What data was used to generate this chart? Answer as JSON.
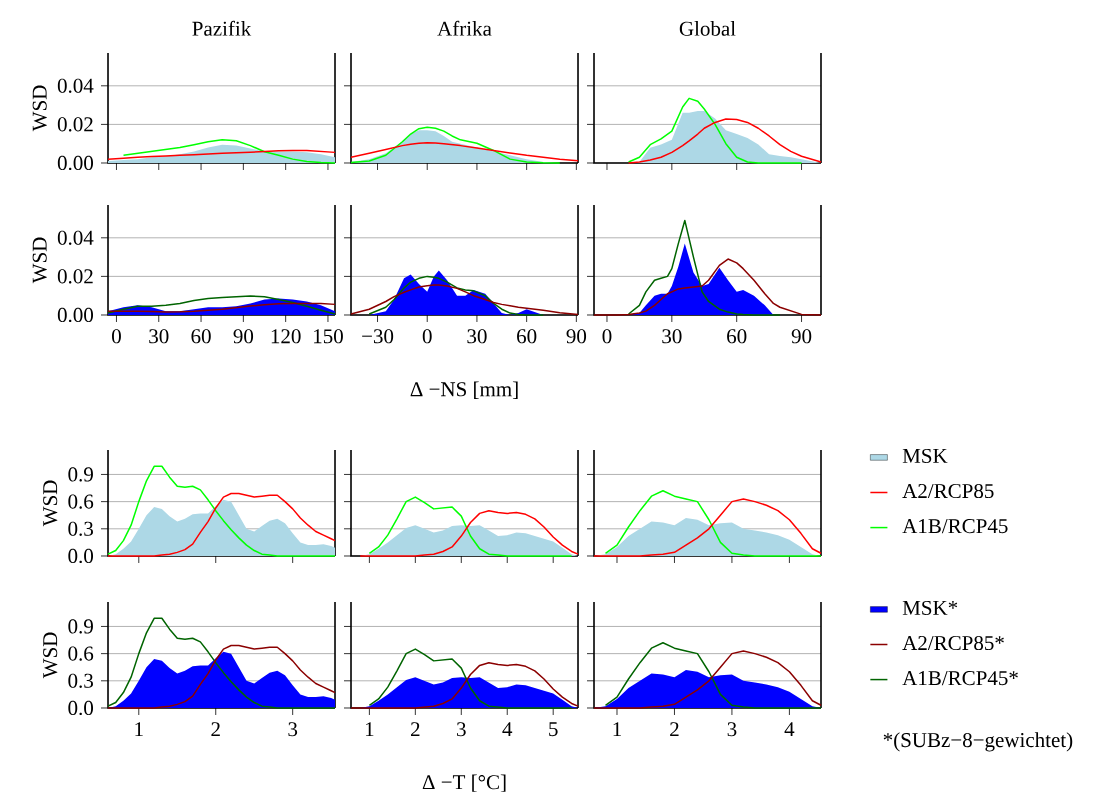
{
  "chart_data": [
    {
      "type": "line",
      "title": "Pazifik",
      "ylabel": "WSD",
      "x": [
        -6,
        5,
        15,
        25,
        35,
        45,
        55,
        65,
        75,
        85,
        95,
        105,
        115,
        125,
        135,
        145,
        155
      ],
      "xlim": [
        -6,
        155
      ],
      "ylim": [
        0,
        0.057
      ],
      "xticks": [
        0,
        30,
        60,
        90,
        120,
        150
      ],
      "yticks": [
        {
          "value": 0,
          "label": "0.00"
        },
        {
          "value": 0.02,
          "label": "0.02"
        },
        {
          "value": 0.04,
          "label": "0.04"
        }
      ],
      "grid": "y",
      "tick_labels": "y",
      "series": [
        {
          "type": "area",
          "color": "#add8e6",
          "values": [
            0.001,
            0.0015,
            0.002,
            0.003,
            0.0035,
            0.0045,
            0.006,
            0.008,
            0.0095,
            0.009,
            0.0075,
            0.006,
            0.006,
            0.006,
            0.0055,
            0.0045,
            0.003
          ]
        },
        {
          "type": "line",
          "color": "#ff0000",
          "values": [
            0.002,
            0.0025,
            0.003,
            0.0033,
            0.0036,
            0.004,
            0.0043,
            0.0046,
            0.005,
            0.0053,
            0.0056,
            0.006,
            0.0063,
            0.0065,
            0.0065,
            0.006,
            0.0055
          ]
        },
        {
          "type": "line",
          "color": "#00ff00",
          "values": [
            null,
            0.004,
            0.005,
            0.006,
            0.007,
            0.008,
            0.0095,
            0.011,
            0.012,
            0.0115,
            0.009,
            0.0058,
            0.004,
            0.002,
            0.0008,
            0.0002,
            0
          ]
        }
      ]
    },
    {
      "type": "line",
      "title": "Afrika",
      "x": [
        -46,
        -35,
        -25,
        -15,
        -10,
        -5,
        0,
        5,
        10,
        15,
        20,
        30,
        40,
        50,
        60,
        70,
        80,
        91
      ],
      "xlim": [
        -46,
        91
      ],
      "ylim": [
        0,
        0.057
      ],
      "xticks": [
        -30,
        0,
        30,
        60,
        90
      ],
      "yticks": [
        0,
        0.02,
        0.04
      ],
      "grid": "y",
      "tick_labels": false,
      "series": [
        {
          "type": "area",
          "color": "#add8e6",
          "values": [
            0.0005,
            0.002,
            0.005,
            0.011,
            0.015,
            0.017,
            0.017,
            0.0165,
            0.014,
            0.011,
            0.01,
            0.008,
            0.006,
            0.004,
            0.002,
            0.0005,
            0,
            0
          ]
        },
        {
          "type": "line",
          "color": "#ff0000",
          "values": [
            0.003,
            0.005,
            0.007,
            0.009,
            0.0097,
            0.0102,
            0.0105,
            0.0103,
            0.01,
            0.0095,
            0.009,
            0.0078,
            0.0065,
            0.0052,
            0.004,
            0.003,
            0.002,
            0.0012
          ]
        },
        {
          "type": "line",
          "color": "#00ff00",
          "values": [
            0.0002,
            0.001,
            0.004,
            0.011,
            0.015,
            0.0178,
            0.0185,
            0.018,
            0.0165,
            0.014,
            0.012,
            0.0102,
            0.0065,
            0.002,
            0.0005,
            0.0001,
            0,
            null
          ]
        }
      ]
    },
    {
      "type": "line",
      "title": "Global",
      "x": [
        -6,
        5,
        10,
        15,
        20,
        25,
        30,
        35,
        38,
        42,
        45,
        50,
        55,
        60,
        65,
        70,
        75,
        80,
        85,
        90,
        99
      ],
      "xlim": [
        -6,
        99
      ],
      "ylim": [
        0,
        0.057
      ],
      "xticks": [
        0,
        30,
        60,
        90
      ],
      "yticks": [
        0,
        0.02,
        0.04
      ],
      "grid": "y",
      "tick_labels": false,
      "series": [
        {
          "type": "area",
          "color": "#add8e6",
          "values": [
            0,
            0,
            0,
            0.0005,
            0.0079,
            0.0096,
            0.012,
            0.026,
            0.026,
            0.027,
            0.027,
            0.023,
            0.017,
            0.015,
            0.013,
            0.0096,
            0.0045,
            0.0036,
            0.003,
            0.0019,
            0
          ]
        },
        {
          "type": "line",
          "color": "#ff0000",
          "values": [
            null,
            null,
            0,
            0.0005,
            0.0015,
            0.003,
            0.0055,
            0.009,
            0.0115,
            0.015,
            0.018,
            0.021,
            0.0228,
            0.0225,
            0.021,
            0.018,
            0.014,
            0.0095,
            0.006,
            0.0035,
            0.0005
          ]
        },
        {
          "type": "line",
          "color": "#00ff00",
          "values": [
            null,
            null,
            0.0005,
            0.003,
            0.0095,
            0.0125,
            0.0165,
            0.029,
            0.0335,
            0.032,
            0.028,
            0.02,
            0.01,
            0.003,
            0.0005,
            0,
            0,
            0,
            0,
            0,
            null
          ]
        }
      ]
    },
    {
      "type": "line",
      "ylabel": "WSD",
      "x": [
        -6,
        5,
        15,
        25,
        35,
        45,
        55,
        65,
        75,
        85,
        95,
        105,
        115,
        125,
        135,
        145,
        155
      ],
      "xlim": [
        -6,
        155
      ],
      "ylim": [
        0,
        0.057
      ],
      "xticks": [
        0,
        30,
        60,
        90,
        120,
        150
      ],
      "yticks": [
        {
          "value": 0,
          "label": "0.00"
        },
        {
          "value": 0.02,
          "label": "0.02"
        },
        {
          "value": 0.04,
          "label": "0.04"
        }
      ],
      "grid": "y",
      "series": [
        {
          "type": "area",
          "color": "#0000ff",
          "values": [
            0.002,
            0.004,
            0.005,
            0.004,
            0.002,
            0.002,
            0.003,
            0.004,
            0.004,
            0.0045,
            0.006,
            0.008,
            0.0085,
            0.008,
            0.007,
            0.005,
            0.002
          ]
        },
        {
          "type": "line",
          "color": "#8b0000",
          "values": [
            0.002,
            0.002,
            0.002,
            0.0018,
            0.0016,
            0.0017,
            0.002,
            0.0025,
            0.003,
            0.0038,
            0.0046,
            0.0053,
            0.0058,
            0.006,
            0.006,
            0.006,
            0.0055
          ]
        },
        {
          "type": "line",
          "color": "#006400",
          "values": [
            0.001,
            0.003,
            0.0045,
            0.0045,
            0.005,
            0.006,
            0.0075,
            0.0085,
            0.009,
            0.0095,
            0.0098,
            0.0095,
            0.008,
            0.0065,
            0.0045,
            0.0025,
            0.0005
          ]
        }
      ]
    },
    {
      "type": "line",
      "xlabel": "Δ −NS [mm]",
      "x": [
        -46,
        -35,
        -25,
        -20,
        -14,
        -10,
        -5,
        0,
        4,
        7,
        12,
        18,
        23,
        28,
        35,
        40,
        45,
        50,
        55,
        60,
        65,
        70,
        80,
        91
      ],
      "xlim": [
        -46,
        91
      ],
      "ylim": [
        0,
        0.057
      ],
      "xticks": [
        {
          "value": -30,
          "label": "−30"
        },
        0,
        30,
        60,
        90
      ],
      "yticks": [
        0,
        0.02,
        0.04
      ],
      "grid": "y",
      "tick_labels": "x",
      "series": [
        {
          "type": "area",
          "color": "#0000ff",
          "values": [
            0,
            0,
            0.002,
            0.008,
            0.019,
            0.021,
            0.016,
            0.012,
            0.02,
            0.023,
            0.018,
            0.01,
            0.01,
            0.013,
            0.011,
            0.006,
            0.001,
            0,
            0.001,
            0.003,
            0.0015,
            0,
            0,
            0
          ]
        },
        {
          "type": "line",
          "color": "#8b0000",
          "values": [
            0.0005,
            0.003,
            0.007,
            0.0095,
            0.0118,
            0.013,
            0.0145,
            0.0152,
            0.0155,
            0.0155,
            0.015,
            0.0138,
            0.012,
            0.01,
            0.008,
            0.0065,
            0.0055,
            0.0048,
            0.004,
            0.0035,
            0.003,
            0.0025,
            0.0012,
            0.0002
          ]
        },
        {
          "type": "line",
          "color": "#006400",
          "values": [
            null,
            0.0005,
            0.004,
            0.008,
            0.014,
            0.017,
            0.019,
            0.02,
            0.0195,
            0.019,
            0.017,
            0.014,
            0.013,
            0.0125,
            0.01,
            0.006,
            0.003,
            0.001,
            0.0003,
            0,
            0,
            0,
            null,
            null
          ]
        }
      ]
    },
    {
      "type": "line",
      "x": [
        -6,
        5,
        10,
        15,
        18,
        22,
        25,
        28,
        30,
        33,
        36,
        40,
        44,
        47,
        52,
        56,
        60,
        63,
        68,
        73,
        77,
        80,
        90,
        99
      ],
      "xlim": [
        -6,
        99
      ],
      "ylim": [
        0,
        0.057
      ],
      "xticks": [
        0,
        30,
        60,
        90
      ],
      "yticks": [
        0,
        0.02,
        0.04
      ],
      "grid": "y",
      "tick_labels": "x",
      "series": [
        {
          "type": "area",
          "color": "#0000ff",
          "values": [
            0,
            0,
            0,
            0.001,
            0.005,
            0.01,
            0.011,
            0.011,
            0.015,
            0.025,
            0.037,
            0.022,
            0.015,
            0.016,
            0.0245,
            0.018,
            0.012,
            0.013,
            0.01,
            0.005,
            0,
            0,
            0,
            0
          ]
        },
        {
          "type": "line",
          "color": "#8b0000",
          "values": [
            0,
            0,
            0.0003,
            0.001,
            0.002,
            0.005,
            0.008,
            0.011,
            0.012,
            0.0135,
            0.014,
            0.0145,
            0.015,
            0.018,
            0.0257,
            0.029,
            0.027,
            0.024,
            0.018,
            0.011,
            0.006,
            0.004,
            0.0003,
            0
          ]
        },
        {
          "type": "line",
          "color": "#006400",
          "values": [
            null,
            null,
            0.0005,
            0.005,
            0.012,
            0.018,
            0.019,
            0.02,
            0.024,
            0.037,
            0.049,
            0.03,
            0.012,
            0.007,
            0.003,
            0.0015,
            0.0005,
            0.0002,
            0,
            0,
            0,
            0,
            null,
            null
          ]
        }
      ]
    },
    {
      "type": "line",
      "ylabel": "WSD",
      "x": [
        0.6,
        0.7,
        0.8,
        0.9,
        1.0,
        1.1,
        1.2,
        1.3,
        1.4,
        1.5,
        1.6,
        1.7,
        1.8,
        1.9,
        2.0,
        2.1,
        2.2,
        2.3,
        2.4,
        2.5,
        2.6,
        2.7,
        2.8,
        2.9,
        3.0,
        3.1,
        3.2,
        3.3,
        3.4,
        3.5,
        3.55
      ],
      "xlim": [
        0.6,
        3.55
      ],
      "ylim": [
        0,
        1.17
      ],
      "xticks": [
        1,
        2,
        3
      ],
      "yticks": [
        {
          "value": 0,
          "label": "0.0"
        },
        0.3,
        0.6,
        0.9
      ],
      "grid": "y",
      "tick_labels": "y",
      "series": [
        {
          "type": "area",
          "color": "#add8e6",
          "values": [
            0,
            0.02,
            0.08,
            0.16,
            0.3,
            0.45,
            0.54,
            0.52,
            0.44,
            0.38,
            0.41,
            0.46,
            0.47,
            0.47,
            0.55,
            0.62,
            0.6,
            0.45,
            0.3,
            0.27,
            0.33,
            0.39,
            0.41,
            0.36,
            0.25,
            0.15,
            0.12,
            0.12,
            0.13,
            0.11,
            0.09
          ]
        },
        {
          "type": "line",
          "color": "#ff0000",
          "values": [
            0,
            0,
            0,
            0,
            0,
            0,
            0,
            0.01,
            0.02,
            0.04,
            0.07,
            0.13,
            0.26,
            0.38,
            0.53,
            0.65,
            0.69,
            0.69,
            0.67,
            0.65,
            0.66,
            0.67,
            0.67,
            0.6,
            0.52,
            0.42,
            0.34,
            0.27,
            0.23,
            0.19,
            0.17
          ]
        },
        {
          "type": "line",
          "color": "#00ff00",
          "values": [
            0.02,
            0.06,
            0.17,
            0.34,
            0.6,
            0.83,
            0.99,
            0.99,
            0.87,
            0.77,
            0.76,
            0.77,
            0.73,
            0.62,
            0.5,
            0.39,
            0.29,
            0.2,
            0.12,
            0.06,
            0.02,
            0.01,
            0,
            0,
            0,
            0,
            0,
            0,
            0,
            0,
            0
          ]
        }
      ]
    },
    {
      "type": "line",
      "x": [
        0.6,
        0.8,
        1.0,
        1.2,
        1.4,
        1.6,
        1.8,
        2.0,
        2.2,
        2.4,
        2.6,
        2.8,
        3.0,
        3.2,
        3.4,
        3.6,
        3.8,
        4.0,
        4.2,
        4.4,
        4.6,
        4.8,
        5.0,
        5.2,
        5.4,
        5.54
      ],
      "xlim": [
        0.6,
        5.54
      ],
      "ylim": [
        0,
        1.17
      ],
      "xticks": [
        1,
        2,
        3,
        4,
        5
      ],
      "yticks": [
        0,
        0.3,
        0.6,
        0.9
      ],
      "grid": "y",
      "tick_labels": false,
      "series": [
        {
          "type": "area",
          "color": "#add8e6",
          "values": [
            0,
            0,
            0.02,
            0.08,
            0.15,
            0.23,
            0.31,
            0.34,
            0.3,
            0.26,
            0.28,
            0.33,
            0.34,
            0.33,
            0.34,
            0.28,
            0.22,
            0.23,
            0.26,
            0.25,
            0.22,
            0.19,
            0.16,
            0.09,
            0.02,
            0
          ]
        },
        {
          "type": "line",
          "color": "#ff0000",
          "values": [
            null,
            0,
            0,
            0,
            0,
            0,
            0,
            0,
            0.01,
            0.02,
            0.05,
            0.1,
            0.22,
            0.37,
            0.47,
            0.5,
            0.48,
            0.47,
            0.48,
            0.46,
            0.41,
            0.32,
            0.21,
            0.12,
            0.05,
            0.02
          ]
        },
        {
          "type": "line",
          "color": "#00ff00",
          "values": [
            null,
            null,
            0.03,
            0.1,
            0.23,
            0.41,
            0.6,
            0.65,
            0.59,
            0.52,
            0.53,
            0.54,
            0.44,
            0.22,
            0.08,
            0.02,
            0.01,
            0,
            0,
            0,
            0,
            0,
            0,
            0,
            0,
            null
          ]
        }
      ]
    },
    {
      "type": "line",
      "x": [
        0.6,
        0.8,
        1.0,
        1.2,
        1.4,
        1.6,
        1.8,
        2.0,
        2.2,
        2.4,
        2.6,
        2.8,
        3.0,
        3.2,
        3.4,
        3.6,
        3.8,
        4.0,
        4.2,
        4.4,
        4.55
      ],
      "xlim": [
        0.6,
        4.55
      ],
      "ylim": [
        0,
        1.17
      ],
      "xticks": [
        1,
        2,
        3,
        4
      ],
      "yticks": [
        0,
        0.3,
        0.6,
        0.9
      ],
      "grid": "y",
      "tick_labels": false,
      "legend": "right",
      "series": [
        {
          "type": "area",
          "name": "MSK",
          "color": "#add8e6",
          "values": [
            0,
            0.02,
            0.1,
            0.22,
            0.3,
            0.38,
            0.37,
            0.34,
            0.42,
            0.4,
            0.34,
            0.36,
            0.37,
            0.3,
            0.28,
            0.26,
            0.23,
            0.18,
            0.1,
            0.02,
            0
          ]
        },
        {
          "type": "line",
          "name": "A2/RCP85",
          "color": "#ff0000",
          "values": [
            0,
            0,
            0,
            0,
            0,
            0.01,
            0.02,
            0.04,
            0.12,
            0.2,
            0.3,
            0.45,
            0.6,
            0.63,
            0.6,
            0.56,
            0.5,
            0.4,
            0.25,
            0.08,
            0.03
          ]
        },
        {
          "type": "line",
          "name": "A1B/RCP45",
          "color": "#00ff00",
          "values": [
            null,
            0.03,
            0.12,
            0.32,
            0.5,
            0.66,
            0.72,
            0.66,
            0.63,
            0.6,
            0.4,
            0.15,
            0.03,
            0.01,
            0,
            0,
            0,
            0,
            0,
            0,
            0
          ]
        }
      ]
    },
    {
      "type": "line",
      "ylabel": "WSD",
      "x": [
        0.6,
        0.7,
        0.8,
        0.9,
        1.0,
        1.1,
        1.2,
        1.3,
        1.4,
        1.5,
        1.6,
        1.7,
        1.8,
        1.9,
        2.0,
        2.1,
        2.2,
        2.3,
        2.4,
        2.5,
        2.6,
        2.7,
        2.8,
        2.9,
        3.0,
        3.1,
        3.2,
        3.3,
        3.4,
        3.5,
        3.55
      ],
      "xlim": [
        0.6,
        3.55
      ],
      "ylim": [
        0,
        1.17
      ],
      "xticks": [
        1,
        2,
        3
      ],
      "yticks": [
        {
          "value": 0,
          "label": "0.0"
        },
        0.3,
        0.6,
        0.9
      ],
      "grid": "y",
      "series": [
        {
          "type": "area",
          "color": "#0000ff",
          "values": [
            0,
            0.02,
            0.08,
            0.16,
            0.3,
            0.45,
            0.54,
            0.52,
            0.44,
            0.38,
            0.41,
            0.46,
            0.47,
            0.47,
            0.55,
            0.62,
            0.6,
            0.45,
            0.3,
            0.27,
            0.33,
            0.39,
            0.41,
            0.36,
            0.25,
            0.15,
            0.12,
            0.12,
            0.13,
            0.11,
            0.09
          ]
        },
        {
          "type": "line",
          "color": "#8b0000",
          "values": [
            0,
            0,
            0,
            0,
            0,
            0,
            0,
            0.01,
            0.02,
            0.04,
            0.07,
            0.13,
            0.26,
            0.38,
            0.53,
            0.65,
            0.69,
            0.69,
            0.67,
            0.65,
            0.66,
            0.67,
            0.67,
            0.6,
            0.52,
            0.42,
            0.34,
            0.27,
            0.23,
            0.19,
            0.17
          ]
        },
        {
          "type": "line",
          "color": "#006400",
          "values": [
            0.02,
            0.06,
            0.17,
            0.34,
            0.6,
            0.83,
            0.99,
            0.99,
            0.87,
            0.77,
            0.76,
            0.77,
            0.73,
            0.62,
            0.5,
            0.39,
            0.29,
            0.2,
            0.12,
            0.06,
            0.02,
            0.01,
            0,
            0,
            0,
            0,
            0,
            0,
            0,
            0,
            0
          ]
        }
      ]
    },
    {
      "type": "line",
      "xlabel": "Δ −T [°C]",
      "x": [
        0.6,
        0.8,
        1.0,
        1.2,
        1.4,
        1.6,
        1.8,
        2.0,
        2.2,
        2.4,
        2.6,
        2.8,
        3.0,
        3.2,
        3.4,
        3.6,
        3.8,
        4.0,
        4.2,
        4.4,
        4.6,
        4.8,
        5.0,
        5.2,
        5.4,
        5.54
      ],
      "xlim": [
        0.6,
        5.54
      ],
      "ylim": [
        0,
        1.17
      ],
      "xticks": [
        1,
        2,
        3,
        4,
        5
      ],
      "yticks": [
        0,
        0.3,
        0.6,
        0.9
      ],
      "grid": "y",
      "tick_labels": "x",
      "series": [
        {
          "type": "area",
          "color": "#0000ff",
          "values": [
            0,
            0,
            0.02,
            0.08,
            0.15,
            0.23,
            0.31,
            0.34,
            0.3,
            0.26,
            0.28,
            0.33,
            0.34,
            0.33,
            0.34,
            0.28,
            0.22,
            0.23,
            0.26,
            0.25,
            0.22,
            0.19,
            0.16,
            0.09,
            0.02,
            0
          ]
        },
        {
          "type": "line",
          "color": "#8b0000",
          "values": [
            0,
            0,
            0,
            0,
            0,
            0,
            0,
            0,
            0.01,
            0.02,
            0.05,
            0.1,
            0.22,
            0.37,
            0.47,
            0.5,
            0.48,
            0.47,
            0.48,
            0.46,
            0.41,
            0.32,
            0.21,
            0.12,
            0.05,
            0.02
          ]
        },
        {
          "type": "line",
          "color": "#006400",
          "values": [
            null,
            null,
            0.03,
            0.1,
            0.23,
            0.41,
            0.6,
            0.65,
            0.59,
            0.52,
            0.53,
            0.54,
            0.44,
            0.22,
            0.08,
            0.02,
            0.01,
            0,
            0,
            0,
            0,
            0,
            0,
            0,
            0,
            null
          ]
        }
      ]
    },
    {
      "type": "line",
      "x": [
        0.6,
        0.8,
        1.0,
        1.2,
        1.4,
        1.6,
        1.8,
        2.0,
        2.2,
        2.4,
        2.6,
        2.8,
        3.0,
        3.2,
        3.4,
        3.6,
        3.8,
        4.0,
        4.2,
        4.4,
        4.55
      ],
      "xlim": [
        0.6,
        4.55
      ],
      "ylim": [
        0,
        1.17
      ],
      "xticks": [
        1,
        2,
        3,
        4
      ],
      "yticks": [
        0,
        0.3,
        0.6,
        0.9
      ],
      "grid": "y",
      "tick_labels": "x",
      "legend": "right",
      "annotations": [
        "*(SUBz−8−gewichtet)"
      ],
      "series": [
        {
          "type": "area",
          "name": "MSK*",
          "color": "#0000ff",
          "values": [
            0,
            0.02,
            0.1,
            0.22,
            0.3,
            0.38,
            0.37,
            0.34,
            0.42,
            0.4,
            0.34,
            0.36,
            0.37,
            0.3,
            0.28,
            0.26,
            0.23,
            0.18,
            0.1,
            0.02,
            0
          ]
        },
        {
          "type": "line",
          "name": "A2/RCP85*",
          "color": "#8b0000",
          "values": [
            0,
            0,
            0,
            0,
            0,
            0.01,
            0.02,
            0.04,
            0.12,
            0.2,
            0.3,
            0.45,
            0.6,
            0.63,
            0.6,
            0.56,
            0.5,
            0.4,
            0.25,
            0.08,
            0.03
          ]
        },
        {
          "type": "line",
          "name": "A1B/RCP45*",
          "color": "#006400",
          "values": [
            null,
            0.03,
            0.12,
            0.32,
            0.5,
            0.66,
            0.72,
            0.66,
            0.63,
            0.6,
            0.4,
            0.15,
            0.03,
            0.01,
            0,
            0,
            0,
            0,
            0,
            0,
            0
          ]
        }
      ]
    }
  ]
}
